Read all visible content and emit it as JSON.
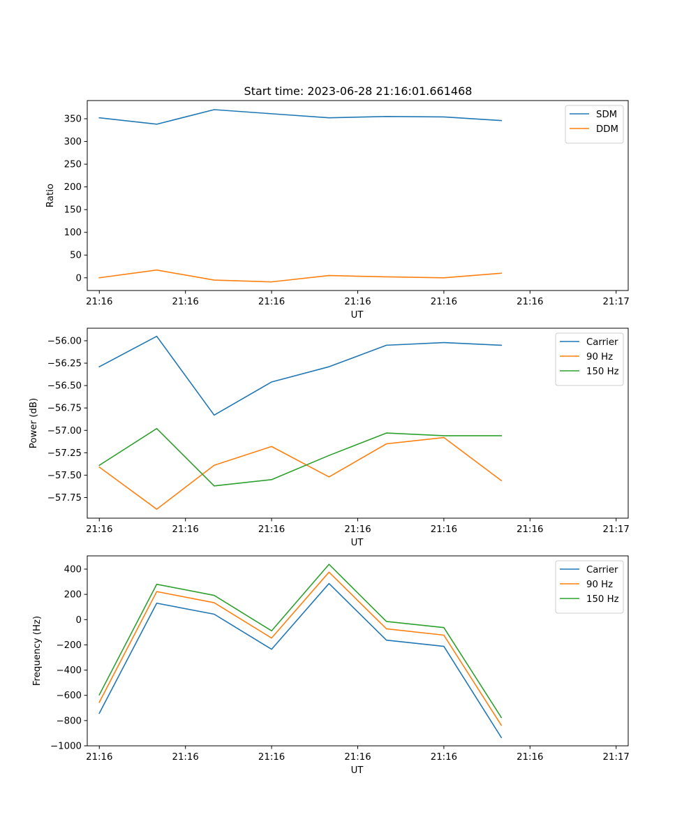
{
  "title": "Start time: 2023-06-28 21:16:01.661468",
  "colors": {
    "C0": "#1f77b4",
    "C1": "#ff7f0e",
    "C2": "#2ca02c"
  },
  "chart_data": [
    {
      "type": "line",
      "xlabel": "UT",
      "ylabel": "Ratio",
      "x_tick_labels": [
        "21:16",
        "21:16",
        "21:16",
        "21:16",
        "21:16",
        "21:16",
        "21:17"
      ],
      "xlim": [
        -0.21,
        9.21
      ],
      "ylim": [
        -28,
        390
      ],
      "yticks": [
        0,
        50,
        100,
        150,
        200,
        250,
        300,
        350
      ],
      "y_tick_labels": [
        "0",
        "50",
        "100",
        "150",
        "200",
        "250",
        "300",
        "350"
      ],
      "x": [
        0,
        1,
        2,
        3,
        4,
        5,
        6,
        7
      ],
      "series": [
        {
          "name": "SDM",
          "color": "#1f77b4",
          "values": [
            352,
            338,
            370,
            361,
            352,
            355,
            354,
            346
          ]
        },
        {
          "name": "DDM",
          "color": "#ff7f0e",
          "values": [
            0,
            17,
            -5,
            -9,
            5,
            2,
            0,
            10
          ]
        }
      ],
      "legend": "top-right"
    },
    {
      "type": "line",
      "xlabel": "UT",
      "ylabel": "Power (dB)",
      "x_tick_labels": [
        "21:16",
        "21:16",
        "21:16",
        "21:16",
        "21:16",
        "21:16",
        "21:17"
      ],
      "xlim": [
        -0.21,
        9.21
      ],
      "ylim": [
        -57.98,
        -55.86
      ],
      "yticks": [
        -57.75,
        -57.5,
        -57.25,
        -57.0,
        -56.75,
        -56.5,
        -56.25,
        -56.0
      ],
      "y_tick_labels": [
        "−57.75",
        "−57.50",
        "−57.25",
        "−57.00",
        "−56.75",
        "−56.50",
        "−56.25",
        "−56.00"
      ],
      "x": [
        0,
        1,
        2,
        3,
        4,
        5,
        6,
        7
      ],
      "series": [
        {
          "name": "Carrier",
          "color": "#1f77b4",
          "values": [
            -56.29,
            -55.95,
            -56.83,
            -56.46,
            -56.29,
            -56.05,
            -56.02,
            -56.05
          ]
        },
        {
          "name": "90 Hz",
          "color": "#ff7f0e",
          "values": [
            -57.41,
            -57.88,
            -57.39,
            -57.18,
            -57.52,
            -57.15,
            -57.08,
            -57.56
          ]
        },
        {
          "name": "150 Hz",
          "color": "#2ca02c",
          "values": [
            -57.39,
            -56.98,
            -57.62,
            -57.55,
            -57.28,
            -57.03,
            -57.06,
            -57.06
          ]
        }
      ],
      "legend": "top-right"
    },
    {
      "type": "line",
      "xlabel": "UT",
      "ylabel": "Frequency (Hz)",
      "x_tick_labels": [
        "21:16",
        "21:16",
        "21:16",
        "21:16",
        "21:16",
        "21:16",
        "21:17"
      ],
      "xlim": [
        -0.21,
        9.21
      ],
      "ylim": [
        -1000,
        505
      ],
      "yticks": [
        -1000,
        -800,
        -600,
        -400,
        -200,
        0,
        200,
        400
      ],
      "y_tick_labels": [
        "−1000",
        "−800",
        "−600",
        "−400",
        "−200",
        "0",
        "200",
        "400"
      ],
      "x": [
        0,
        1,
        2,
        3,
        4,
        5,
        6,
        7
      ],
      "series": [
        {
          "name": "Carrier",
          "color": "#1f77b4",
          "values": [
            -742,
            130,
            43,
            -235,
            286,
            -163,
            -212,
            -934
          ]
        },
        {
          "name": "90 Hz",
          "color": "#ff7f0e",
          "values": [
            -655,
            222,
            134,
            -146,
            376,
            -73,
            -123,
            -837
          ]
        },
        {
          "name": "150 Hz",
          "color": "#2ca02c",
          "values": [
            -596,
            280,
            192,
            -89,
            438,
            -15,
            -63,
            -775
          ]
        }
      ],
      "legend": "top-right"
    }
  ]
}
